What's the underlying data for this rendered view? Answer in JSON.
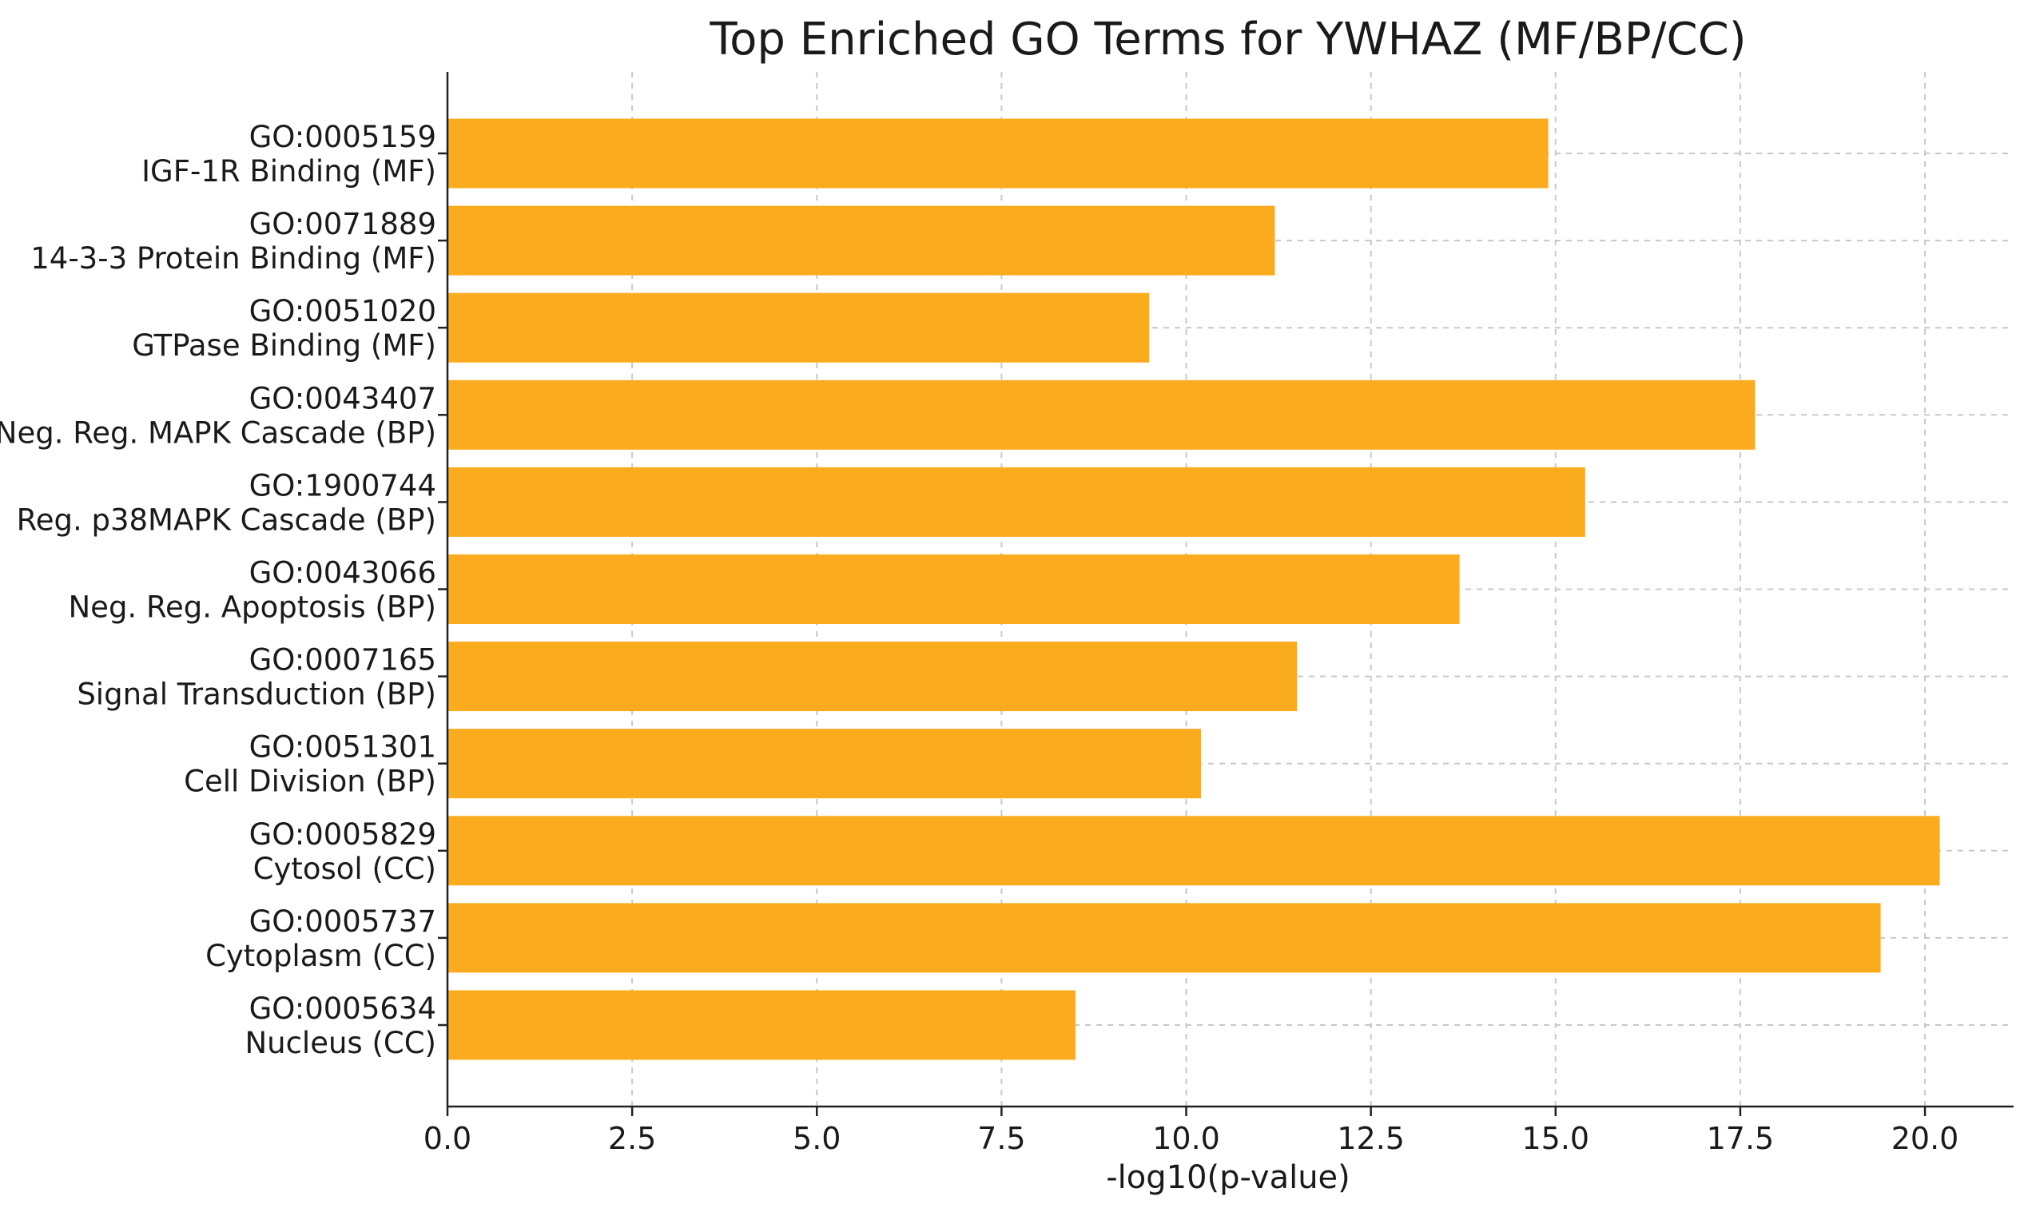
{
  "chart_data": {
    "type": "bar",
    "orientation": "horizontal",
    "title": "Top Enriched GO Terms for YWHAZ (MF/BP/CC)",
    "xlabel": "-log10(p-value)",
    "ylabel": "",
    "xlim": [
      0,
      21.2
    ],
    "xticks": [
      0.0,
      2.5,
      5.0,
      7.5,
      10.0,
      12.5,
      15.0,
      17.5,
      20.0
    ],
    "xtick_labels": [
      "0.0",
      "2.5",
      "5.0",
      "7.5",
      "10.0",
      "12.5",
      "15.0",
      "17.5",
      "20.0"
    ],
    "grid": true,
    "bar_color": "#FAAB1E",
    "categories": [
      {
        "id": "GO:0005159",
        "term": "IGF-1R Binding (MF)"
      },
      {
        "id": "GO:0071889",
        "term": "14-3-3 Protein Binding (MF)"
      },
      {
        "id": "GO:0051020",
        "term": "GTPase Binding (MF)"
      },
      {
        "id": "GO:0043407",
        "term": "Neg. Reg. MAPK Cascade (BP)"
      },
      {
        "id": "GO:1900744",
        "term": "Reg. p38MAPK Cascade (BP)"
      },
      {
        "id": "GO:0043066",
        "term": "Neg. Reg. Apoptosis (BP)"
      },
      {
        "id": "GO:0007165",
        "term": "Signal Transduction (BP)"
      },
      {
        "id": "GO:0051301",
        "term": "Cell Division (BP)"
      },
      {
        "id": "GO:0005829",
        "term": "Cytosol (CC)"
      },
      {
        "id": "GO:0005737",
        "term": "Cytoplasm (CC)"
      },
      {
        "id": "GO:0005634",
        "term": "Nucleus (CC)"
      }
    ],
    "values": [
      14.9,
      11.2,
      9.5,
      17.7,
      15.4,
      13.7,
      11.5,
      10.2,
      20.2,
      19.4,
      8.5
    ]
  }
}
